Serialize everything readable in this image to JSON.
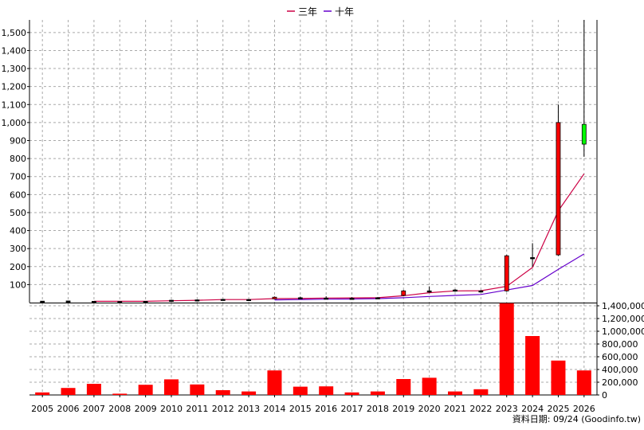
{
  "chart_data": {
    "type": "candlestick+line+bar",
    "legend": [
      {
        "label": "三年",
        "color": "#cc0044"
      },
      {
        "label": "十年",
        "color": "#6600cc"
      }
    ],
    "years": [
      "2005",
      "2006",
      "2007",
      "2008",
      "2009",
      "2010",
      "2011",
      "2012",
      "2013",
      "2014",
      "2015",
      "2016",
      "2017",
      "2018",
      "2019",
      "2020",
      "2021",
      "2022",
      "2023",
      "2024",
      "2025",
      "2026"
    ],
    "price_axis": {
      "min": 0,
      "max": 1570,
      "ticks": [
        100,
        200,
        300,
        400,
        500,
        600,
        700,
        800,
        900,
        1000,
        1100,
        1200,
        1300,
        1400,
        1500
      ],
      "tick_labels": [
        "100",
        "200",
        "300",
        "400",
        "500",
        "600",
        "700",
        "800",
        "900",
        "1,000",
        "1,100",
        "1,200",
        "1,300",
        "1,400",
        "1,500"
      ]
    },
    "volume_axis": {
      "min": 0,
      "max": 1400000,
      "ticks": [
        0,
        200000,
        400000,
        600000,
        800000,
        1000000,
        1200000,
        1400000
      ],
      "tick_labels": [
        "0",
        "200,000",
        "400,000",
        "600,000",
        "800,000",
        "1,000,000",
        "1,200,000",
        "1,400,000"
      ]
    },
    "candles": [
      {
        "year": "2005",
        "open": 8,
        "close": 8,
        "high": 9,
        "low": 7
      },
      {
        "year": "2006",
        "open": 9,
        "close": 9,
        "high": 10,
        "low": 8
      },
      {
        "year": "2007",
        "open": 7,
        "close": 7,
        "high": 8,
        "low": 6
      },
      {
        "year": "2008",
        "open": 6,
        "close": 6,
        "high": 7,
        "low": 5
      },
      {
        "year": "2009",
        "open": 7,
        "close": 7,
        "high": 9,
        "low": 5
      },
      {
        "year": "2010",
        "open": 13,
        "close": 13,
        "high": 15,
        "low": 11
      },
      {
        "year": "2011",
        "open": 15,
        "close": 15,
        "high": 17,
        "low": 13
      },
      {
        "year": "2012",
        "open": 18,
        "close": 18,
        "high": 19,
        "low": 17
      },
      {
        "year": "2013",
        "open": 17,
        "close": 17,
        "high": 20,
        "low": 15
      },
      {
        "year": "2014",
        "open": 21,
        "close": 30,
        "high": 34,
        "low": 19
      },
      {
        "year": "2015",
        "open": 27,
        "close": 27,
        "high": 33,
        "low": 21
      },
      {
        "year": "2016",
        "open": 25,
        "close": 25,
        "high": 35,
        "low": 21
      },
      {
        "year": "2017",
        "open": 24,
        "close": 24,
        "high": 30,
        "low": 21
      },
      {
        "year": "2018",
        "open": 27,
        "close": 27,
        "high": 30,
        "low": 24
      },
      {
        "year": "2019",
        "open": 40,
        "close": 65,
        "high": 70,
        "low": 35
      },
      {
        "year": "2020",
        "open": 65,
        "close": 65,
        "high": 90,
        "low": 55
      },
      {
        "year": "2021",
        "open": 70,
        "close": 70,
        "high": 75,
        "low": 60
      },
      {
        "year": "2022",
        "open": 65,
        "close": 65,
        "high": 70,
        "low": 60
      },
      {
        "year": "2023",
        "open": 65,
        "close": 260,
        "high": 265,
        "low": 60
      },
      {
        "year": "2024",
        "open": 250,
        "close": 250,
        "high": 330,
        "low": 200
      },
      {
        "year": "2025",
        "open": 265,
        "close": 1000,
        "high": 1100,
        "low": 260
      },
      {
        "year": "2026",
        "open": 990,
        "close": 880,
        "high": 1570,
        "low": 810
      }
    ],
    "ma3": [
      {
        "year": "2007",
        "value": 7
      },
      {
        "year": "2008",
        "value": 7
      },
      {
        "year": "2009",
        "value": 7
      },
      {
        "year": "2010",
        "value": 10
      },
      {
        "year": "2011",
        "value": 13
      },
      {
        "year": "2012",
        "value": 17
      },
      {
        "year": "2013",
        "value": 17
      },
      {
        "year": "2014",
        "value": 22
      },
      {
        "year": "2015",
        "value": 23
      },
      {
        "year": "2016",
        "value": 25
      },
      {
        "year": "2017",
        "value": 26
      },
      {
        "year": "2018",
        "value": 27
      },
      {
        "year": "2019",
        "value": 38
      },
      {
        "year": "2020",
        "value": 55
      },
      {
        "year": "2021",
        "value": 65
      },
      {
        "year": "2022",
        "value": 66
      },
      {
        "year": "2023",
        "value": 90
      },
      {
        "year": "2024",
        "value": 195
      },
      {
        "year": "2025",
        "value": 510
      },
      {
        "year": "2026",
        "value": 715
      }
    ],
    "ma10": [
      {
        "year": "2014",
        "value": 15
      },
      {
        "year": "2015",
        "value": 17
      },
      {
        "year": "2016",
        "value": 19
      },
      {
        "year": "2017",
        "value": 20
      },
      {
        "year": "2018",
        "value": 22
      },
      {
        "year": "2019",
        "value": 27
      },
      {
        "year": "2020",
        "value": 34
      },
      {
        "year": "2021",
        "value": 40
      },
      {
        "year": "2022",
        "value": 45
      },
      {
        "year": "2023",
        "value": 70
      },
      {
        "year": "2024",
        "value": 95
      },
      {
        "year": "2025",
        "value": 185
      },
      {
        "year": "2026",
        "value": 270
      }
    ],
    "volume": [
      {
        "year": "2005",
        "value": 40000
      },
      {
        "year": "2006",
        "value": 110000
      },
      {
        "year": "2007",
        "value": 175000
      },
      {
        "year": "2008",
        "value": 20000
      },
      {
        "year": "2009",
        "value": 160000
      },
      {
        "year": "2010",
        "value": 245000
      },
      {
        "year": "2011",
        "value": 165000
      },
      {
        "year": "2012",
        "value": 75000
      },
      {
        "year": "2013",
        "value": 55000
      },
      {
        "year": "2014",
        "value": 385000
      },
      {
        "year": "2015",
        "value": 130000
      },
      {
        "year": "2016",
        "value": 135000
      },
      {
        "year": "2017",
        "value": 40000
      },
      {
        "year": "2018",
        "value": 55000
      },
      {
        "year": "2019",
        "value": 250000
      },
      {
        "year": "2020",
        "value": 270000
      },
      {
        "year": "2021",
        "value": 55000
      },
      {
        "year": "2022",
        "value": 90000
      },
      {
        "year": "2023",
        "value": 1440000
      },
      {
        "year": "2024",
        "value": 925000
      },
      {
        "year": "2025",
        "value": 540000
      },
      {
        "year": "2026",
        "value": 385000
      }
    ],
    "colors": {
      "up": "#ff0000",
      "down": "#00ff00",
      "volume": "#ff0000",
      "ma3": "#cc0044",
      "ma10": "#6600cc"
    }
  },
  "footer": "資料日期: 09/24  (Goodinfo.tw)"
}
